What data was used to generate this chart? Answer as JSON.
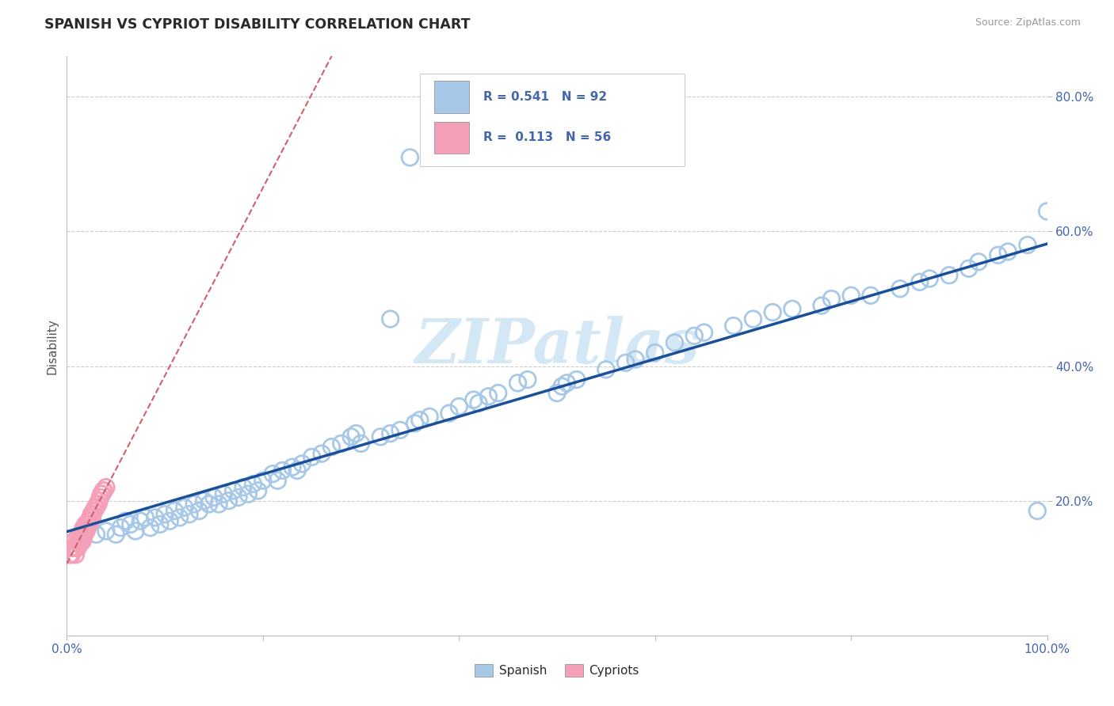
{
  "title": "SPANISH VS CYPRIOT DISABILITY CORRELATION CHART",
  "source": "Source: ZipAtlas.com",
  "ylabel": "Disability",
  "xlim": [
    0.0,
    1.0
  ],
  "ylim": [
    0.0,
    0.86
  ],
  "xticks": [
    0.0,
    0.2,
    0.4,
    0.6,
    0.8,
    1.0
  ],
  "xticklabels": [
    "0.0%",
    "",
    "",
    "",
    "",
    "100.0%"
  ],
  "yticks": [
    0.2,
    0.4,
    0.6,
    0.8
  ],
  "yticklabels": [
    "20.0%",
    "40.0%",
    "60.0%",
    "80.0%"
  ],
  "spanish_R": 0.541,
  "spanish_N": 92,
  "cypriot_R": 0.113,
  "cypriot_N": 56,
  "spanish_color": "#a8c8e8",
  "cypriot_color": "#f4a0b8",
  "spanish_line_color": "#1a4f9a",
  "cypriot_line_color": "#d06070",
  "title_color": "#2a2a2a",
  "axis_label_color": "#4466aa",
  "grid_color": "#cccccc",
  "watermark": "ZIPatlas",
  "spanish_x": [
    0.03,
    0.04,
    0.05,
    0.055,
    0.06,
    0.065,
    0.07,
    0.075,
    0.08,
    0.085,
    0.09,
    0.095,
    0.1,
    0.105,
    0.11,
    0.115,
    0.12,
    0.125,
    0.13,
    0.135,
    0.14,
    0.145,
    0.15,
    0.155,
    0.16,
    0.165,
    0.17,
    0.175,
    0.18,
    0.185,
    0.19,
    0.195,
    0.2,
    0.21,
    0.215,
    0.22,
    0.23,
    0.235,
    0.24,
    0.25,
    0.26,
    0.27,
    0.28,
    0.29,
    0.295,
    0.3,
    0.32,
    0.33,
    0.34,
    0.355,
    0.36,
    0.37,
    0.39,
    0.4,
    0.415,
    0.42,
    0.43,
    0.44,
    0.46,
    0.47,
    0.5,
    0.505,
    0.51,
    0.52,
    0.55,
    0.57,
    0.58,
    0.6,
    0.62,
    0.64,
    0.65,
    0.68,
    0.7,
    0.72,
    0.74,
    0.77,
    0.78,
    0.8,
    0.82,
    0.85,
    0.87,
    0.88,
    0.9,
    0.92,
    0.93,
    0.95,
    0.96,
    0.98,
    0.99,
    1.0,
    0.35,
    0.33
  ],
  "spanish_y": [
    0.15,
    0.155,
    0.15,
    0.16,
    0.17,
    0.165,
    0.155,
    0.17,
    0.175,
    0.16,
    0.175,
    0.165,
    0.18,
    0.17,
    0.185,
    0.175,
    0.19,
    0.18,
    0.195,
    0.185,
    0.2,
    0.195,
    0.205,
    0.195,
    0.21,
    0.2,
    0.215,
    0.205,
    0.22,
    0.21,
    0.225,
    0.215,
    0.23,
    0.24,
    0.23,
    0.245,
    0.25,
    0.245,
    0.255,
    0.265,
    0.27,
    0.28,
    0.285,
    0.295,
    0.3,
    0.285,
    0.295,
    0.3,
    0.305,
    0.315,
    0.32,
    0.325,
    0.33,
    0.34,
    0.35,
    0.345,
    0.355,
    0.36,
    0.375,
    0.38,
    0.36,
    0.37,
    0.375,
    0.38,
    0.395,
    0.405,
    0.41,
    0.42,
    0.435,
    0.445,
    0.45,
    0.46,
    0.47,
    0.48,
    0.485,
    0.49,
    0.5,
    0.505,
    0.505,
    0.515,
    0.525,
    0.53,
    0.535,
    0.545,
    0.555,
    0.565,
    0.57,
    0.58,
    0.185,
    0.63,
    0.71,
    0.47
  ],
  "cypriot_x": [
    0.003,
    0.004,
    0.005,
    0.006,
    0.007,
    0.008,
    0.009,
    0.01,
    0.01,
    0.011,
    0.011,
    0.012,
    0.012,
    0.013,
    0.013,
    0.014,
    0.014,
    0.015,
    0.015,
    0.016,
    0.016,
    0.017,
    0.017,
    0.017,
    0.018,
    0.018,
    0.019,
    0.019,
    0.019,
    0.02,
    0.02,
    0.021,
    0.021,
    0.022,
    0.022,
    0.023,
    0.023,
    0.024,
    0.024,
    0.025,
    0.025,
    0.026,
    0.026,
    0.027,
    0.028,
    0.029,
    0.03,
    0.031,
    0.032,
    0.033,
    0.034,
    0.035,
    0.036,
    0.037,
    0.038,
    0.04
  ],
  "cypriot_y": [
    0.12,
    0.13,
    0.12,
    0.13,
    0.14,
    0.13,
    0.12,
    0.14,
    0.13,
    0.145,
    0.13,
    0.14,
    0.145,
    0.135,
    0.145,
    0.14,
    0.15,
    0.145,
    0.15,
    0.14,
    0.155,
    0.145,
    0.155,
    0.16,
    0.15,
    0.155,
    0.155,
    0.16,
    0.165,
    0.155,
    0.16,
    0.165,
    0.16,
    0.165,
    0.17,
    0.165,
    0.17,
    0.175,
    0.17,
    0.175,
    0.18,
    0.175,
    0.18,
    0.185,
    0.185,
    0.19,
    0.19,
    0.195,
    0.195,
    0.2,
    0.205,
    0.21,
    0.21,
    0.215,
    0.215,
    0.22
  ]
}
